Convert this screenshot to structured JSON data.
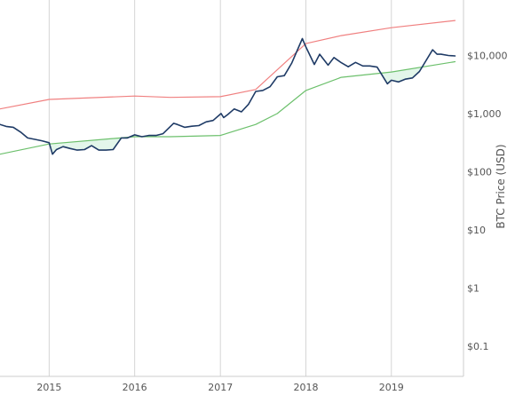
{
  "chart_data": {
    "type": "line",
    "title": "",
    "xlabel": "",
    "ylabel": "BTC Price (USD)",
    "y_scale": "log",
    "ylim": [
      0.03,
      90000
    ],
    "xlim": [
      "2014-06-05",
      "2019-11-05"
    ],
    "x_ticks": [
      {
        "date": "2015-01-01",
        "label": "2015"
      },
      {
        "date": "2016-01-01",
        "label": "2016"
      },
      {
        "date": "2017-01-01",
        "label": "2017"
      },
      {
        "date": "2018-01-01",
        "label": "2018"
      },
      {
        "date": "2019-01-01",
        "label": "2019"
      }
    ],
    "y_ticks": [
      {
        "value": 0.1,
        "label": "$0.1"
      },
      {
        "value": 1,
        "label": "$1"
      },
      {
        "value": 10,
        "label": "$10"
      },
      {
        "value": 100,
        "label": "$100"
      },
      {
        "value": 1000,
        "label": "$1,000"
      },
      {
        "value": 10000,
        "label": "$10,000"
      }
    ],
    "grid": {
      "x": true,
      "y": false
    },
    "colors": {
      "price": "#1f3b66",
      "upper_band": "#f08080",
      "lower_band": "#6cc06c",
      "fill": "#e3f6ea",
      "grid": "#d6d6d6",
      "axis": "#cccccc"
    },
    "series": [
      {
        "key": "price",
        "x": [
          "2014-06-05",
          "2014-07-01",
          "2014-08-01",
          "2014-09-01",
          "2014-10-01",
          "2014-11-01",
          "2014-12-01",
          "2015-01-01",
          "2015-01-15",
          "2015-02-01",
          "2015-03-01",
          "2015-04-01",
          "2015-05-01",
          "2015-06-01",
          "2015-07-01",
          "2015-08-01",
          "2015-09-01",
          "2015-10-01",
          "2015-11-05",
          "2015-12-01",
          "2016-01-01",
          "2016-02-01",
          "2016-03-01",
          "2016-04-01",
          "2016-05-01",
          "2016-06-15",
          "2016-07-01",
          "2016-08-01",
          "2016-09-01",
          "2016-10-01",
          "2016-11-01",
          "2016-12-01",
          "2017-01-04",
          "2017-01-15",
          "2017-02-01",
          "2017-03-01",
          "2017-04-01",
          "2017-05-01",
          "2017-06-01",
          "2017-07-01",
          "2017-08-01",
          "2017-09-01",
          "2017-10-01",
          "2017-11-01",
          "2017-12-17",
          "2018-01-01",
          "2018-02-06",
          "2018-03-01",
          "2018-04-06",
          "2018-05-01",
          "2018-06-01",
          "2018-07-01",
          "2018-08-01",
          "2018-09-01",
          "2018-10-01",
          "2018-11-01",
          "2018-12-15",
          "2019-01-01",
          "2019-02-01",
          "2019-03-01",
          "2019-04-01",
          "2019-05-01",
          "2019-06-26",
          "2019-07-15",
          "2019-08-01",
          "2019-09-01",
          "2019-09-30"
        ],
        "y": [
          650,
          600,
          580,
          480,
          380,
          360,
          340,
          315,
          200,
          240,
          270,
          250,
          235,
          240,
          280,
          235,
          235,
          240,
          380,
          380,
          430,
          400,
          420,
          420,
          450,
          680,
          650,
          580,
          605,
          620,
          720,
          760,
          1000,
          850,
          960,
          1200,
          1070,
          1450,
          2400,
          2500,
          2900,
          4300,
          4500,
          7300,
          19500,
          14000,
          7000,
          10500,
          6800,
          9200,
          7500,
          6400,
          7600,
          6600,
          6600,
          6300,
          3250,
          3750,
          3500,
          3900,
          4100,
          5300,
          12500,
          10500,
          10500,
          10000,
          9800
        ]
      },
      {
        "key": "upper_band",
        "x": [
          "2014-06-05",
          "2015-01-01",
          "2016-01-01",
          "2016-06-01",
          "2017-01-01",
          "2017-06-01",
          "2018-01-01",
          "2018-06-01",
          "2019-01-01",
          "2019-09-30"
        ],
        "y": [
          1200,
          1750,
          2000,
          1900,
          1950,
          2600,
          16000,
          22000,
          30000,
          40000
        ]
      },
      {
        "key": "lower_band",
        "x": [
          "2014-06-05",
          "2015-01-01",
          "2016-01-01",
          "2016-06-01",
          "2017-01-01",
          "2017-06-01",
          "2017-09-01",
          "2018-01-01",
          "2018-06-01",
          "2019-01-01",
          "2019-09-30"
        ],
        "y": [
          200,
          300,
          400,
          400,
          420,
          650,
          1000,
          2500,
          4200,
          5200,
          7800
        ]
      }
    ]
  }
}
